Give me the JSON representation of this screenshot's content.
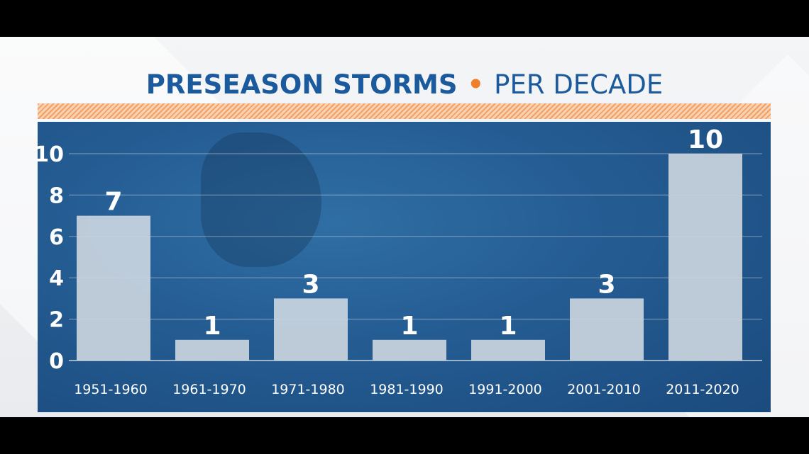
{
  "title": {
    "strong": "PRESEASON STORMS",
    "separator": "•",
    "rest": "PER DECADE"
  },
  "colors": {
    "title": "#1c5a9e",
    "accent": "#f07f2c",
    "panel": "#245c92",
    "bar": "#c9d4df",
    "text": "#ffffff"
  },
  "chart_data": {
    "type": "bar",
    "title": "PRESEASON STORMS • PER DECADE",
    "categories": [
      "1951-1960",
      "1961-1970",
      "1971-1980",
      "1981-1990",
      "1991-2000",
      "2001-2010",
      "2011-2020"
    ],
    "values": [
      7,
      1,
      3,
      1,
      1,
      3,
      10
    ],
    "data_labels": [
      "7",
      "1",
      "3",
      "1",
      "1",
      "3",
      "10"
    ],
    "y_ticks": [
      0,
      2,
      4,
      6,
      8,
      10
    ],
    "ylim": [
      0,
      10
    ],
    "grid": true,
    "legend": "none",
    "xlabel": "",
    "ylabel": ""
  }
}
